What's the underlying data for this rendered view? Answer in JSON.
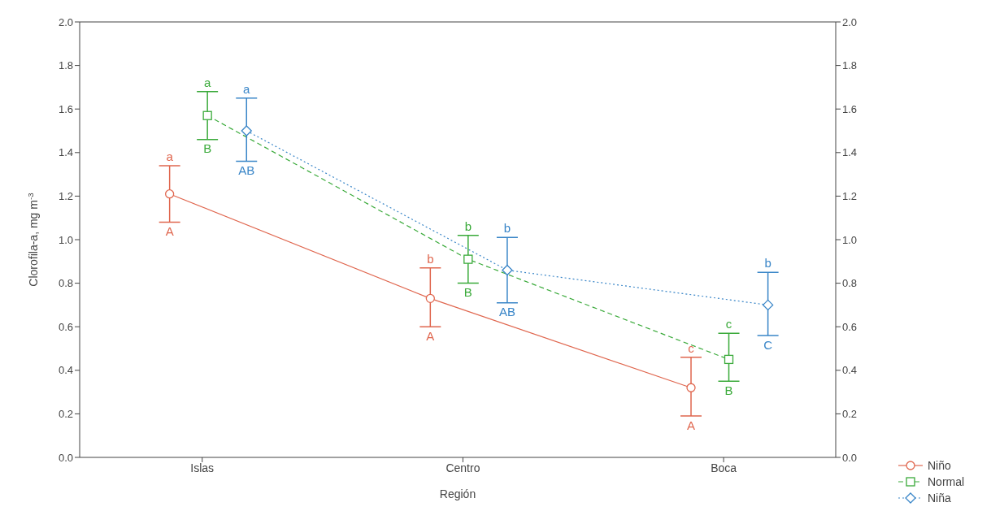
{
  "chart_data": {
    "type": "line",
    "xlabel": "Región",
    "ylabel": "Clorofila-a, mg m$^{-3}$",
    "categories": [
      "Islas",
      "Centro",
      "Boca"
    ],
    "series": [
      {
        "name": "Niño",
        "color": "#e0674f",
        "marker": "circle",
        "line_style": "solid",
        "values": [
          1.21,
          0.73,
          0.32
        ],
        "errors": [
          [
            1.08,
            1.34
          ],
          [
            0.6,
            0.87
          ],
          [
            0.19,
            0.46
          ]
        ]
      },
      {
        "name": "Normal",
        "color": "#3aaa3a",
        "marker": "square",
        "line_style": "dashed",
        "values": [
          1.57,
          0.91,
          0.45
        ],
        "errors": [
          [
            1.46,
            1.68
          ],
          [
            0.8,
            1.02
          ],
          [
            0.35,
            0.57
          ]
        ]
      },
      {
        "name": "Niña",
        "color": "#3a86c8",
        "marker": "diamond",
        "line_style": "dotted",
        "values": [
          1.5,
          0.86,
          0.7
        ],
        "errors": [
          [
            1.36,
            1.65
          ],
          [
            0.71,
            1.01
          ],
          [
            0.56,
            0.85
          ]
        ]
      }
    ],
    "ylim": [
      0,
      2
    ],
    "yticks": [
      {
        "value": 0,
        "label": "0.0"
      },
      0.2,
      0.4,
      0.6,
      0.8,
      {
        "value": 1,
        "label": "1.0"
      },
      1.2,
      1.4,
      1.6,
      1.8,
      {
        "value": 2,
        "label": "2.0"
      }
    ],
    "y2lim": [
      0,
      2
    ],
    "y2ticks": [
      {
        "value": 0,
        "label": "0.0"
      },
      0.2,
      0.4,
      0.6,
      0.8,
      {
        "value": 1,
        "label": "1.0"
      },
      1.2,
      1.4,
      1.6,
      1.8,
      {
        "value": 2,
        "label": "2.0"
      }
    ],
    "legend": "bottom right",
    "annotations": [
      "a",
      "A",
      "a",
      "B",
      "a",
      "AB",
      "b",
      "A",
      "b",
      "B",
      "b",
      "AB",
      "c",
      "A",
      "c",
      "B",
      "b",
      "C"
    ]
  }
}
